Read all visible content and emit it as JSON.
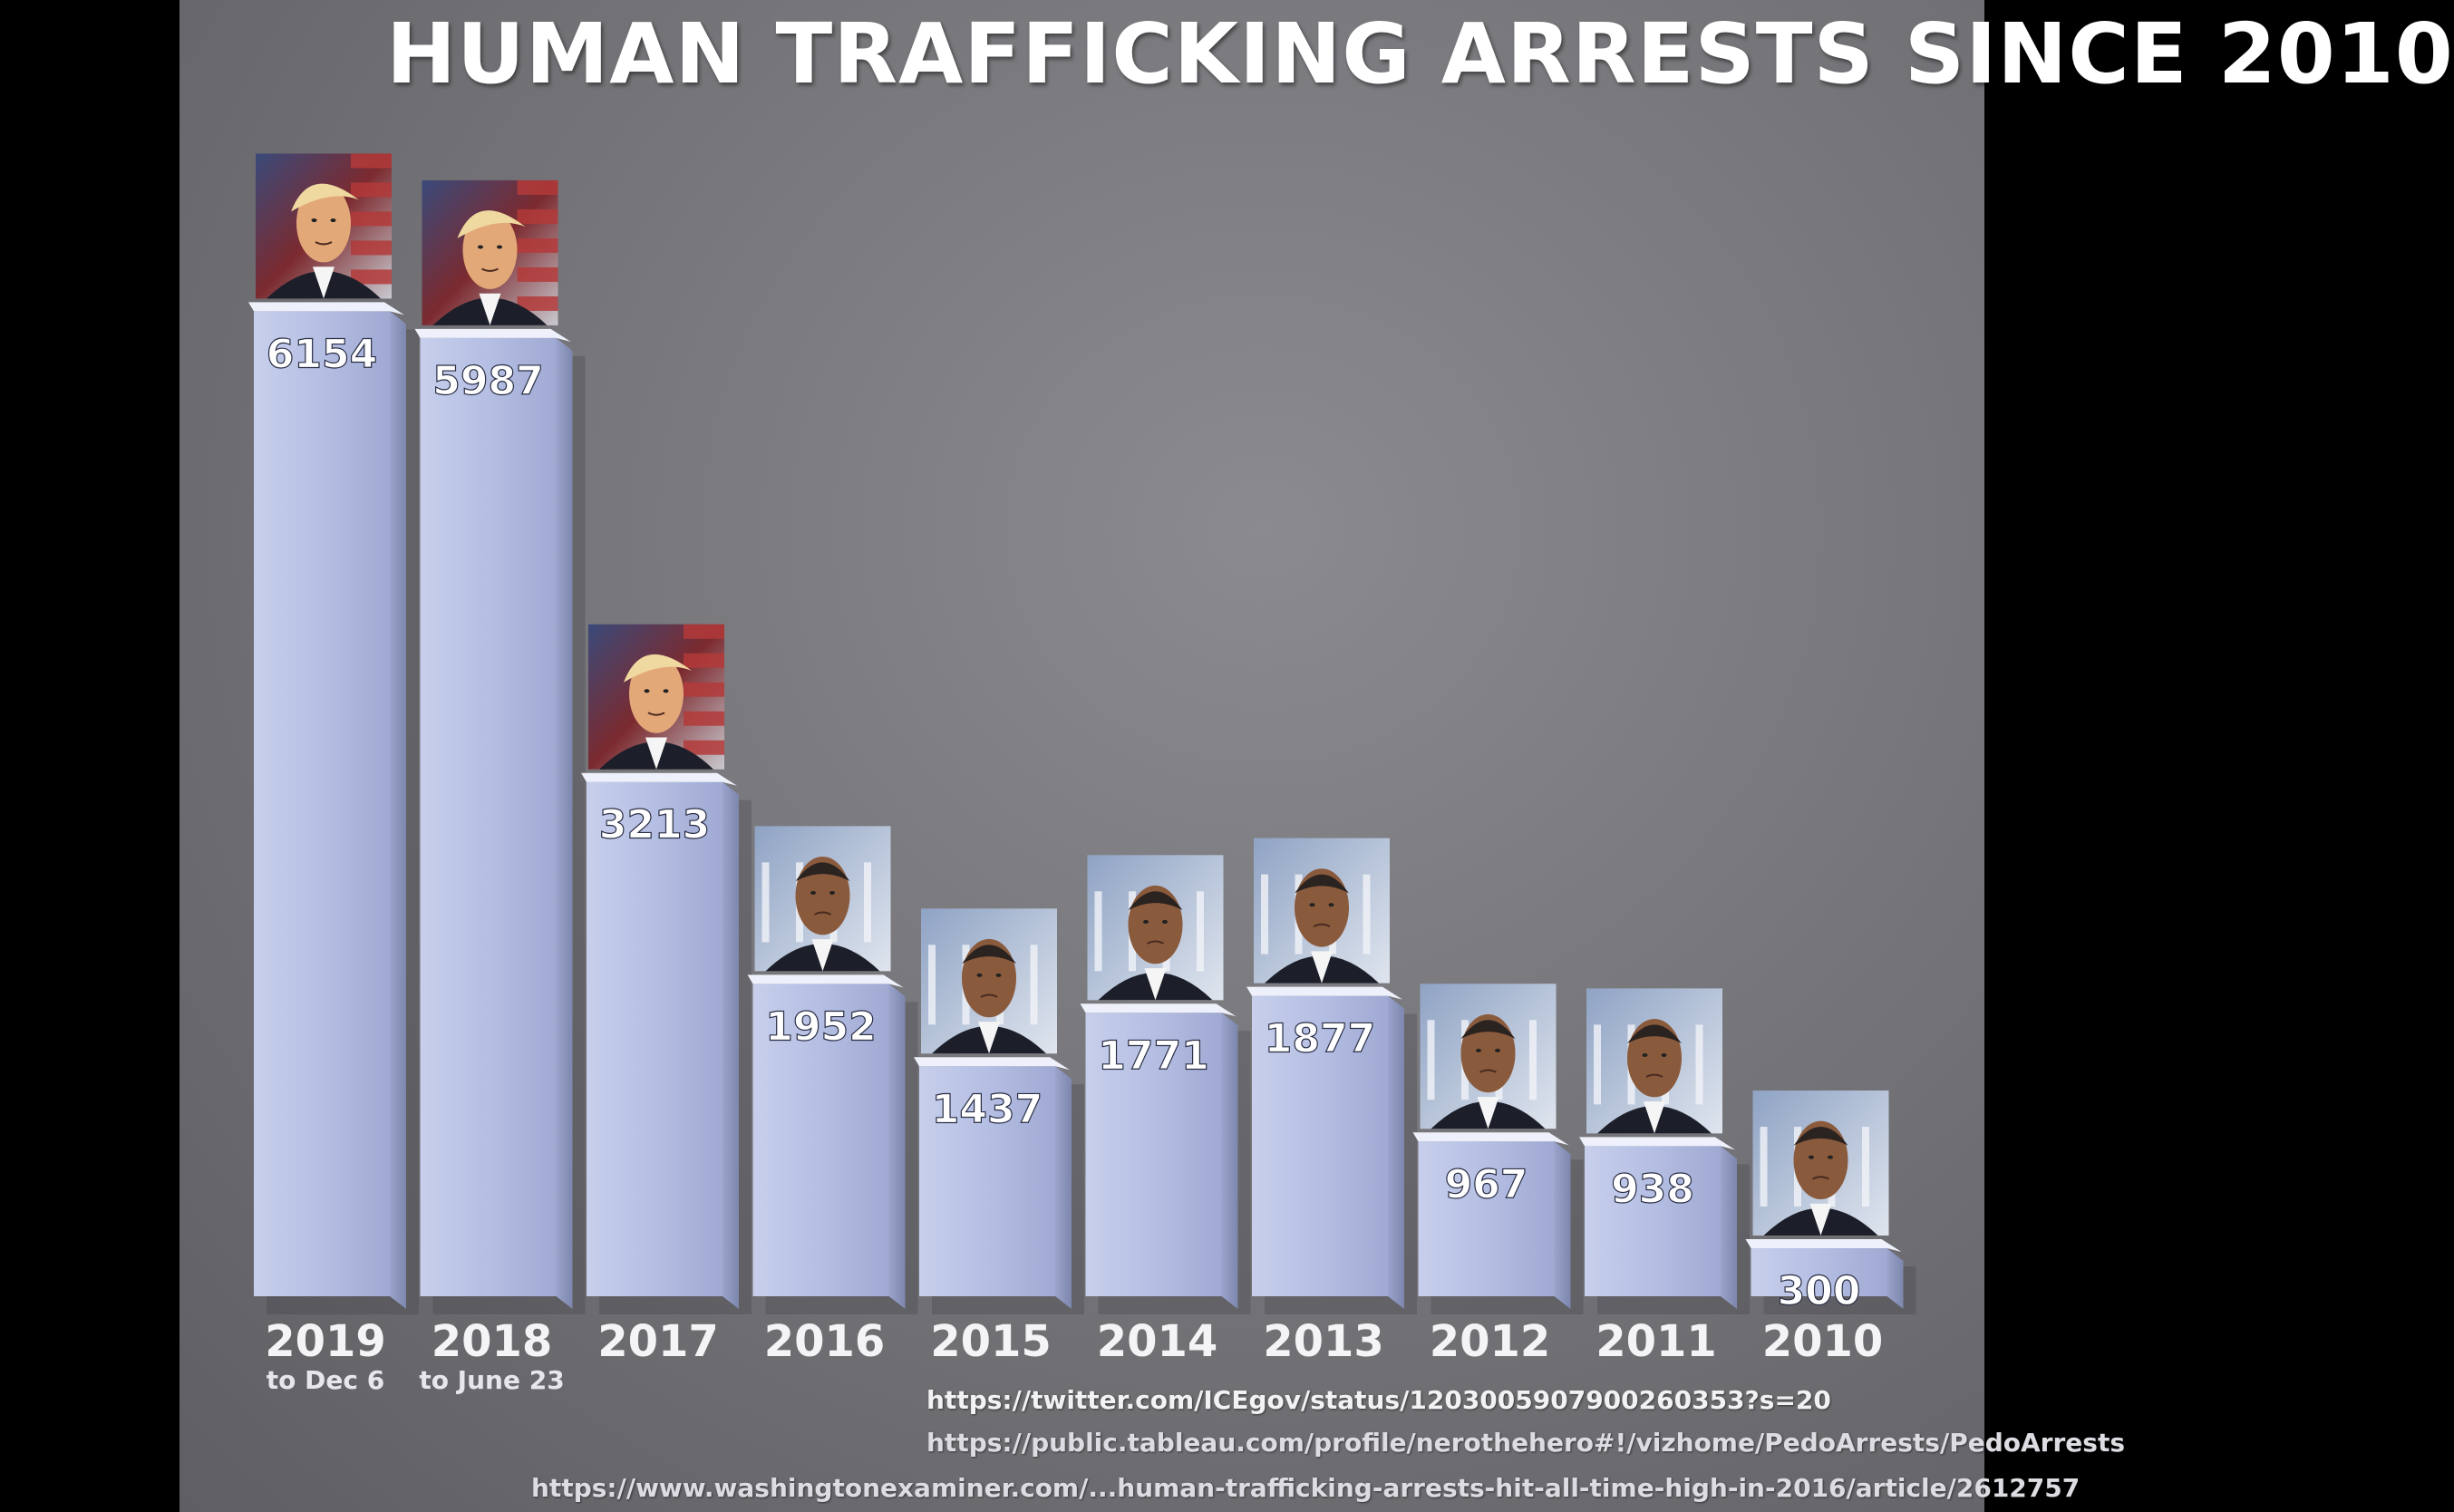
{
  "chart_data": {
    "type": "bar",
    "title": "HUMAN TRAFFICKING ARRESTS SINCE 2010",
    "categories": [
      "2019",
      "2018",
      "2017",
      "2016",
      "2015",
      "2014",
      "2013",
      "2012",
      "2011",
      "2010"
    ],
    "category_notes": [
      "to Dec 6",
      "to June 23",
      "",
      "",
      "",
      "",
      "",
      "",
      "",
      ""
    ],
    "values": [
      6154,
      5987,
      3213,
      1952,
      1437,
      1771,
      1877,
      967,
      938,
      300
    ],
    "ylim": [
      0,
      6400
    ],
    "grid": false,
    "bar_color": "#b9c2e3",
    "portrait_subjects": [
      "trump",
      "trump",
      "trump",
      "obama",
      "obama",
      "obama",
      "obama",
      "obama",
      "obama",
      "obama"
    ]
  },
  "sources": [
    "https://twitter.com/ICEgov/status/1203005907900260353?s=20",
    "https://public.tableau.com/profile/nerothehero#!/vizhome/PedoArrests/PedoArrests",
    "https://www.washingtonexaminer.com/...human-trafficking-arrests-hit-all-time-high-in-2016/article/2612757"
  ],
  "colors": {
    "background": "#77777b",
    "title": "#ffffff",
    "bar_front": "#b9c2e3",
    "bar_top": "#e8ecf8",
    "bar_side": "#8e98bd",
    "label_text": "#ffffff"
  }
}
